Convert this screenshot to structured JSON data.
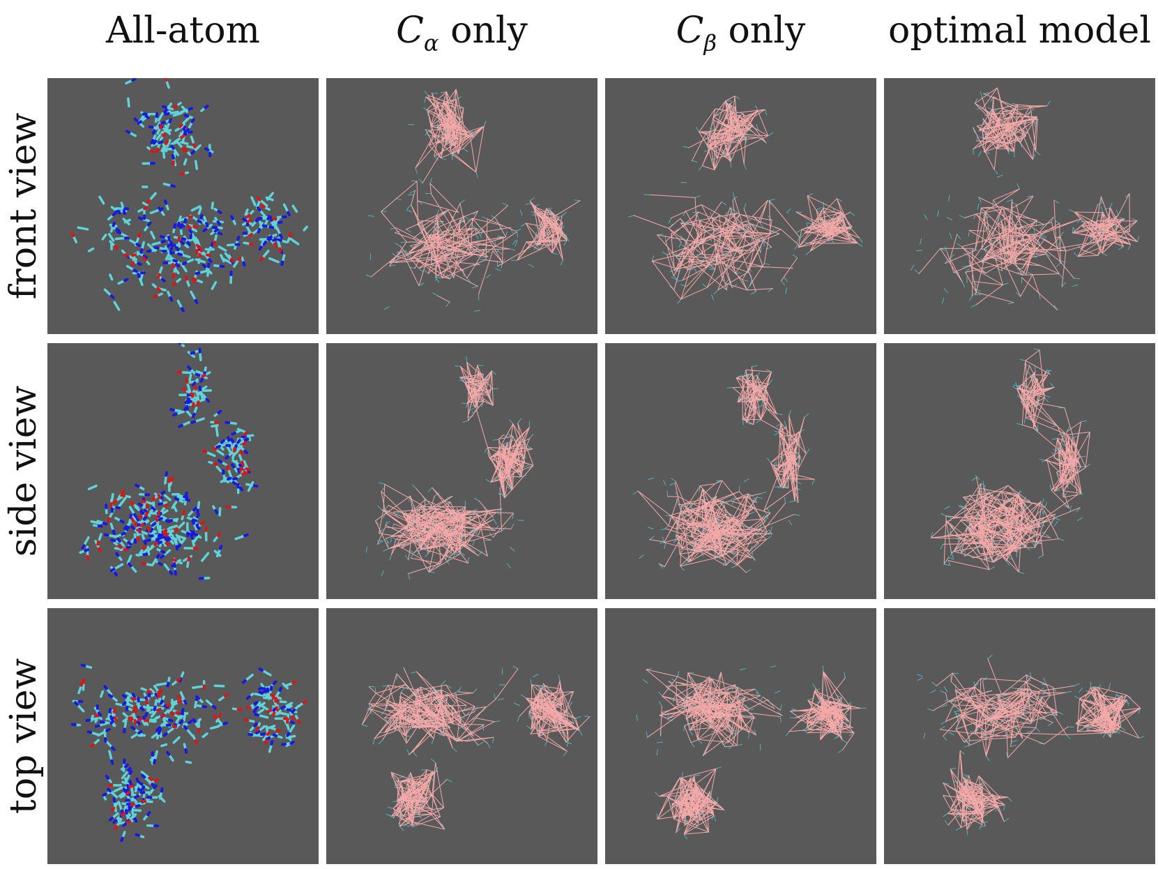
{
  "columns": [
    {
      "text": "All-atom"
    },
    {
      "symbol": "C",
      "subscript": "α",
      "text": "only"
    },
    {
      "symbol": "C",
      "subscript": "β",
      "text": "only"
    },
    {
      "text": "optimal model"
    }
  ],
  "rows": [
    {
      "text": "front view"
    },
    {
      "text": "side view"
    },
    {
      "text": "top view"
    }
  ]
}
